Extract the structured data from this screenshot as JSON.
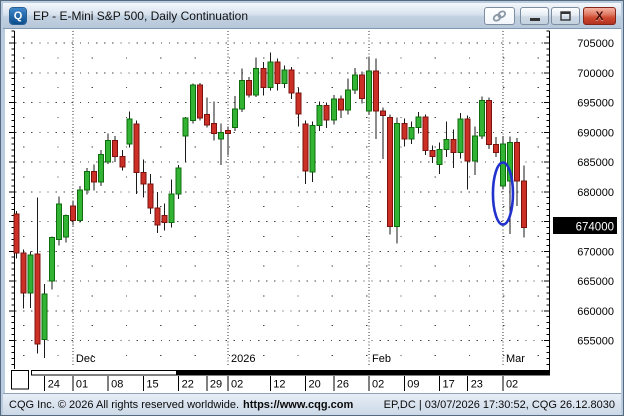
{
  "window": {
    "title": "EP - E-Mini S&P 500, Daily Continuation",
    "icon_letter": "Q",
    "buttons": {
      "link": "link-chart",
      "minimize": "minimize",
      "maximize": "maximize",
      "close": "close",
      "close_glyph": "X"
    }
  },
  "statusbar": {
    "copyright": "CQG Inc. © 2026 All rights reserved worldwide.",
    "url": "https://www.cqg.com",
    "session_info": "EP,DC | 03/07/2026 17:30:52, CQG 26.12.8030"
  },
  "chart_data": {
    "type": "candlestick",
    "symbol": "EP",
    "title": "E-Mini S&P 500, Daily Continuation",
    "y_axis": {
      "labels": [
        705000,
        700000,
        695000,
        690000,
        685000,
        680000,
        675000,
        670000,
        665000,
        660000,
        655000
      ],
      "major_step": 5000,
      "minor_step": 1000,
      "top_price": 707000,
      "bottom_price": 650000
    },
    "last_price": 674000,
    "last_price_label": "674000",
    "x_axis": {
      "week_ticks": [
        {
          "i": 4,
          "label": "24"
        },
        {
          "i": 8,
          "label": "01"
        },
        {
          "i": 13,
          "label": "08"
        },
        {
          "i": 18,
          "label": "15"
        },
        {
          "i": 23,
          "label": "22"
        },
        {
          "i": 27,
          "label": "29"
        },
        {
          "i": 30,
          "label": "02"
        },
        {
          "i": 36,
          "label": "12"
        },
        {
          "i": 41,
          "label": "20"
        },
        {
          "i": 45,
          "label": "26"
        },
        {
          "i": 50,
          "label": "02"
        },
        {
          "i": 55,
          "label": "09"
        },
        {
          "i": 60,
          "label": "17"
        },
        {
          "i": 64,
          "label": "23"
        },
        {
          "i": 69,
          "label": "02"
        }
      ],
      "month_lines": [
        {
          "i": 8,
          "label": "Dec"
        },
        {
          "i": 30,
          "label": "2026"
        },
        {
          "i": 50,
          "label": "Feb"
        },
        {
          "i": 69,
          "label": "Mar"
        }
      ]
    },
    "candles": [
      [
        "Nov 18",
        676300,
        676800,
        668800,
        669700
      ],
      [
        "Nov 19",
        669700,
        670300,
        660400,
        663000
      ],
      [
        "Nov 20",
        663000,
        670000,
        660500,
        669400
      ],
      [
        "Nov 21",
        669500,
        679000,
        652800,
        654400
      ],
      [
        "Nov 24",
        655200,
        664500,
        652100,
        662800
      ],
      [
        "Nov 25",
        665000,
        672500,
        663600,
        672300
      ],
      [
        "Nov 26",
        672000,
        679200,
        671000,
        677900
      ],
      [
        "Nov 28",
        672400,
        676200,
        671500,
        676000
      ],
      [
        "Dec 01",
        677600,
        678400,
        674300,
        675200
      ],
      [
        "Dec 02",
        675200,
        681000,
        674800,
        680300
      ],
      [
        "Dec 03",
        680300,
        684000,
        679500,
        683400
      ],
      [
        "Dec 04",
        683400,
        684600,
        680200,
        681600
      ],
      [
        "Dec 05",
        681600,
        687000,
        681000,
        686300
      ],
      [
        "Dec 08",
        685000,
        689800,
        684700,
        688600
      ],
      [
        "Dec 09",
        688600,
        689400,
        685000,
        685900
      ],
      [
        "Dec 10",
        685900,
        687000,
        683600,
        684200
      ],
      [
        "Dec 11",
        688000,
        693500,
        687400,
        692200
      ],
      [
        "Dec 12",
        691400,
        692000,
        679600,
        683200
      ],
      [
        "Dec 15",
        683200,
        685400,
        679000,
        681300
      ],
      [
        "Dec 16",
        681300,
        683000,
        676300,
        677300
      ],
      [
        "Dec 17",
        677300,
        680000,
        673100,
        674400
      ],
      [
        "Dec 18",
        676000,
        678000,
        673500,
        674800
      ],
      [
        "Dec 19",
        674800,
        682100,
        674000,
        679600
      ],
      [
        "Dec 22",
        679600,
        684500,
        678800,
        684000
      ],
      [
        "Dec 23",
        689400,
        692600,
        684900,
        692400
      ],
      [
        "Dec 24",
        692000,
        698200,
        691500,
        697900
      ],
      [
        "Dec 26",
        697900,
        698300,
        692000,
        692400
      ],
      [
        "Dec 29",
        693000,
        695800,
        690800,
        691200
      ],
      [
        "Dec 30",
        691500,
        695200,
        688600,
        689800
      ],
      [
        "Dec 31",
        688900,
        691500,
        684500,
        690000
      ],
      [
        "Jan 02",
        690300,
        691000,
        686100,
        689800
      ],
      [
        "Jan 05",
        690800,
        696100,
        690200,
        693900
      ],
      [
        "Jan 06",
        693900,
        700700,
        693400,
        698700
      ],
      [
        "Jan 07",
        698700,
        699300,
        695800,
        696300
      ],
      [
        "Jan 08",
        696300,
        702600,
        695900,
        700700
      ],
      [
        "Jan 09",
        700700,
        701800,
        696200,
        697500
      ],
      [
        "Jan 12",
        697500,
        703400,
        697000,
        701800
      ],
      [
        "Jan 13",
        701800,
        702400,
        697000,
        698200
      ],
      [
        "Jan 14",
        698200,
        701200,
        697400,
        700500
      ],
      [
        "Jan 15",
        700500,
        701000,
        695600,
        696600
      ],
      [
        "Jan 16",
        696600,
        697500,
        691000,
        693100
      ],
      [
        "Jan 20",
        691400,
        692000,
        681300,
        683500
      ],
      [
        "Jan 21",
        683300,
        691800,
        681600,
        691100
      ],
      [
        "Jan 22",
        691100,
        695200,
        690200,
        694500
      ],
      [
        "Jan 23",
        694500,
        695000,
        690700,
        692100
      ],
      [
        "Jan 26",
        692100,
        696300,
        691300,
        695600
      ],
      [
        "Jan 27",
        695600,
        696200,
        692400,
        693700
      ],
      [
        "Jan 28",
        693700,
        699000,
        693000,
        697100
      ],
      [
        "Jan 29",
        697100,
        700800,
        696400,
        699600
      ],
      [
        "Jan 30",
        699600,
        700200,
        694800,
        695700
      ],
      [
        "Feb 02",
        693600,
        702600,
        693000,
        700300
      ],
      [
        "Feb 03",
        700300,
        702400,
        688900,
        693600
      ],
      [
        "Feb 04",
        693600,
        694200,
        685500,
        692800
      ],
      [
        "Feb 05",
        692500,
        693000,
        672800,
        674200
      ],
      [
        "Feb 06",
        674200,
        692500,
        671300,
        691500
      ],
      [
        "Feb 09",
        691500,
        692300,
        687600,
        688900
      ],
      [
        "Feb 10",
        688900,
        691800,
        688000,
        690800
      ],
      [
        "Feb 11",
        690800,
        693400,
        689800,
        692600
      ],
      [
        "Feb 12",
        692600,
        693000,
        686200,
        686900
      ],
      [
        "Feb 13",
        686900,
        687800,
        684800,
        685900
      ],
      [
        "Feb 17",
        684600,
        688300,
        683000,
        687100
      ],
      [
        "Feb 18",
        687100,
        691800,
        685800,
        688800
      ],
      [
        "Feb 19",
        688800,
        690500,
        684000,
        686600
      ],
      [
        "Feb 20",
        686600,
        693200,
        685600,
        692200
      ],
      [
        "Feb 23",
        692200,
        692800,
        680400,
        685200
      ],
      [
        "Feb 24",
        685200,
        691000,
        682800,
        689400
      ],
      [
        "Feb 25",
        689400,
        696000,
        688900,
        695300
      ],
      [
        "Feb 26",
        695300,
        695800,
        687200,
        687900
      ],
      [
        "Feb 27",
        687900,
        689200,
        685800,
        686600
      ],
      [
        "Mar 02",
        681000,
        689400,
        680400,
        688000
      ],
      [
        "Mar 03",
        681800,
        689300,
        672900,
        688300
      ],
      [
        "Mar 04",
        688300,
        689000,
        677600,
        681800
      ],
      [
        "Mar 05",
        681800,
        684400,
        672300,
        674000
      ]
    ],
    "annotation": {
      "shape": "ellipse",
      "candle_index": 69,
      "color": "#2232cc"
    },
    "colors": {
      "up_fill": "#33b333",
      "up_stroke": "#0e6e0e",
      "down_fill": "#cc2f26",
      "down_stroke": "#7a130d",
      "wick": "#1a1a1a",
      "grid": "#444444",
      "last_price_bg": "#000000",
      "last_price_fg": "#ffffff"
    }
  }
}
